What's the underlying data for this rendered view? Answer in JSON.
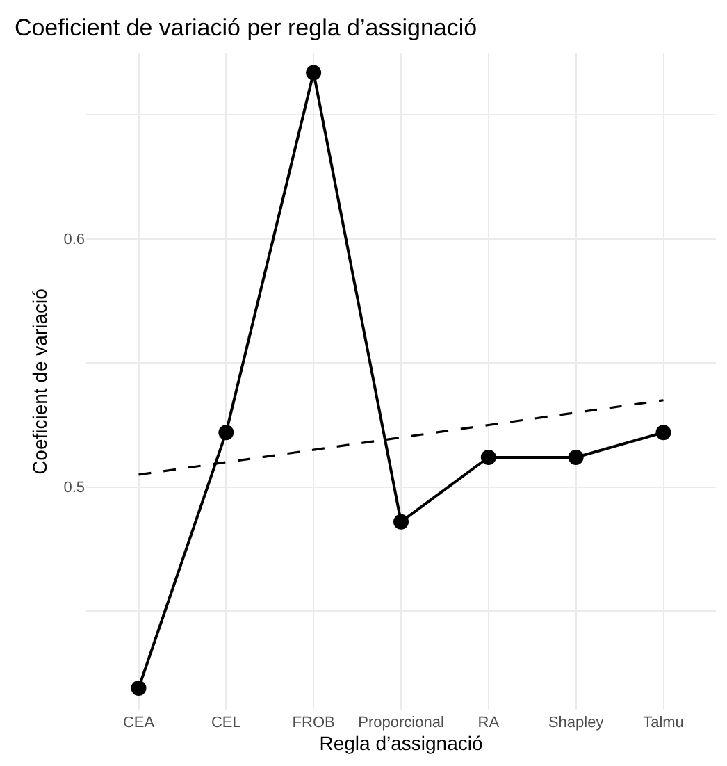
{
  "chart_data": {
    "type": "line",
    "title": "Coeficient de variació per regla d’assignació",
    "xlabel": "Regla d’assignació",
    "ylabel": "Coeficient de variació",
    "categories": [
      "CEA",
      "CEL",
      "FROB",
      "Proporcional",
      "RA",
      "Shapley",
      "Talmu"
    ],
    "series": [
      {
        "color": "#000000",
        "values": [
          0.419,
          0.522,
          0.667,
          0.486,
          0.512,
          0.512,
          0.522
        ],
        "marker": "circle",
        "line_style": "solid"
      },
      {
        "color": "#000000",
        "values": [
          0.505,
          0.51,
          0.515,
          0.52,
          0.525,
          0.53,
          0.535
        ],
        "marker": "none",
        "line_style": "dashed"
      }
    ],
    "ylim": [
      0.41,
      0.675
    ],
    "yticks": [
      {
        "value": 0.45,
        "label": null
      },
      0.5,
      {
        "value": 0.55,
        "label": null
      },
      0.6,
      {
        "value": 0.65,
        "label": null
      }
    ],
    "grid": true
  }
}
